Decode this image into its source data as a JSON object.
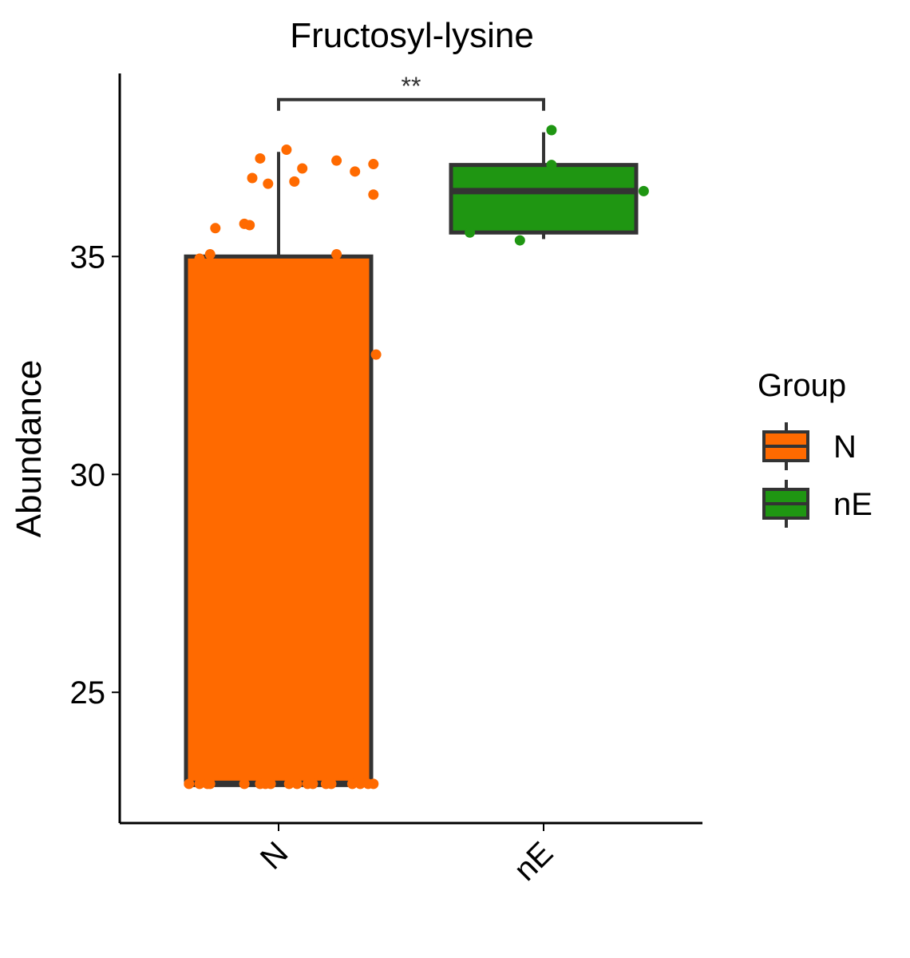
{
  "chart_data": {
    "type": "box",
    "title": "Fructosyl-lysine",
    "ylabel": "Abundance",
    "xlabel": "",
    "categories": [
      "N",
      "nE"
    ],
    "yticks": [
      25,
      30,
      35
    ],
    "ylim": [
      22.0,
      39.2
    ],
    "grid": false,
    "legend": {
      "title": "Group",
      "position": "right",
      "entries": [
        "N",
        "nE"
      ]
    },
    "colors": {
      "N": "#ff6a00",
      "nE": "#1f9612",
      "outline": "#333333"
    },
    "significance": {
      "label": "**",
      "between": [
        "N",
        "nE"
      ],
      "y": 38.6
    },
    "boxes": [
      {
        "group": "N",
        "whisker_low": 22.9,
        "q1": 22.9,
        "median": 22.9,
        "q3": 35.0,
        "whisker_high": 37.4,
        "points": [
          {
            "x": -0.34,
            "y": 22.9
          },
          {
            "x": -0.3,
            "y": 22.9
          },
          {
            "x": -0.27,
            "y": 22.9
          },
          {
            "x": -0.26,
            "y": 22.9
          },
          {
            "x": -0.13,
            "y": 22.9
          },
          {
            "x": -0.07,
            "y": 22.9
          },
          {
            "x": -0.05,
            "y": 22.9
          },
          {
            "x": -0.03,
            "y": 22.9
          },
          {
            "x": 0.04,
            "y": 22.9
          },
          {
            "x": 0.07,
            "y": 22.9
          },
          {
            "x": 0.11,
            "y": 22.9
          },
          {
            "x": 0.13,
            "y": 22.9
          },
          {
            "x": 0.18,
            "y": 22.9
          },
          {
            "x": 0.2,
            "y": 22.9
          },
          {
            "x": 0.28,
            "y": 22.9
          },
          {
            "x": 0.31,
            "y": 22.9
          },
          {
            "x": 0.34,
            "y": 22.9
          },
          {
            "x": 0.36,
            "y": 22.9
          },
          {
            "x": -0.3,
            "y": 34.95
          },
          {
            "x": -0.26,
            "y": 35.05
          },
          {
            "x": 0.22,
            "y": 35.05
          },
          {
            "x": -0.24,
            "y": 35.65
          },
          {
            "x": -0.13,
            "y": 35.75
          },
          {
            "x": -0.11,
            "y": 35.72
          },
          {
            "x": -0.1,
            "y": 36.8
          },
          {
            "x": -0.04,
            "y": 36.67
          },
          {
            "x": 0.06,
            "y": 36.72
          },
          {
            "x": 0.09,
            "y": 37.02
          },
          {
            "x": 0.29,
            "y": 36.95
          },
          {
            "x": -0.07,
            "y": 37.25
          },
          {
            "x": 0.03,
            "y": 37.45
          },
          {
            "x": 0.22,
            "y": 37.2
          },
          {
            "x": 0.36,
            "y": 37.12
          },
          {
            "x": 0.36,
            "y": 36.42
          },
          {
            "x": 0.37,
            "y": 32.75
          }
        ]
      },
      {
        "group": "nE",
        "whisker_low": 35.4,
        "q1": 35.55,
        "median": 36.5,
        "q3": 37.1,
        "whisker_high": 37.85,
        "points": [
          {
            "x": -0.28,
            "y": 35.55
          },
          {
            "x": -0.09,
            "y": 35.37
          },
          {
            "x": 0.03,
            "y": 37.1
          },
          {
            "x": 0.03,
            "y": 37.9
          },
          {
            "x": 0.38,
            "y": 36.5
          }
        ]
      }
    ]
  }
}
